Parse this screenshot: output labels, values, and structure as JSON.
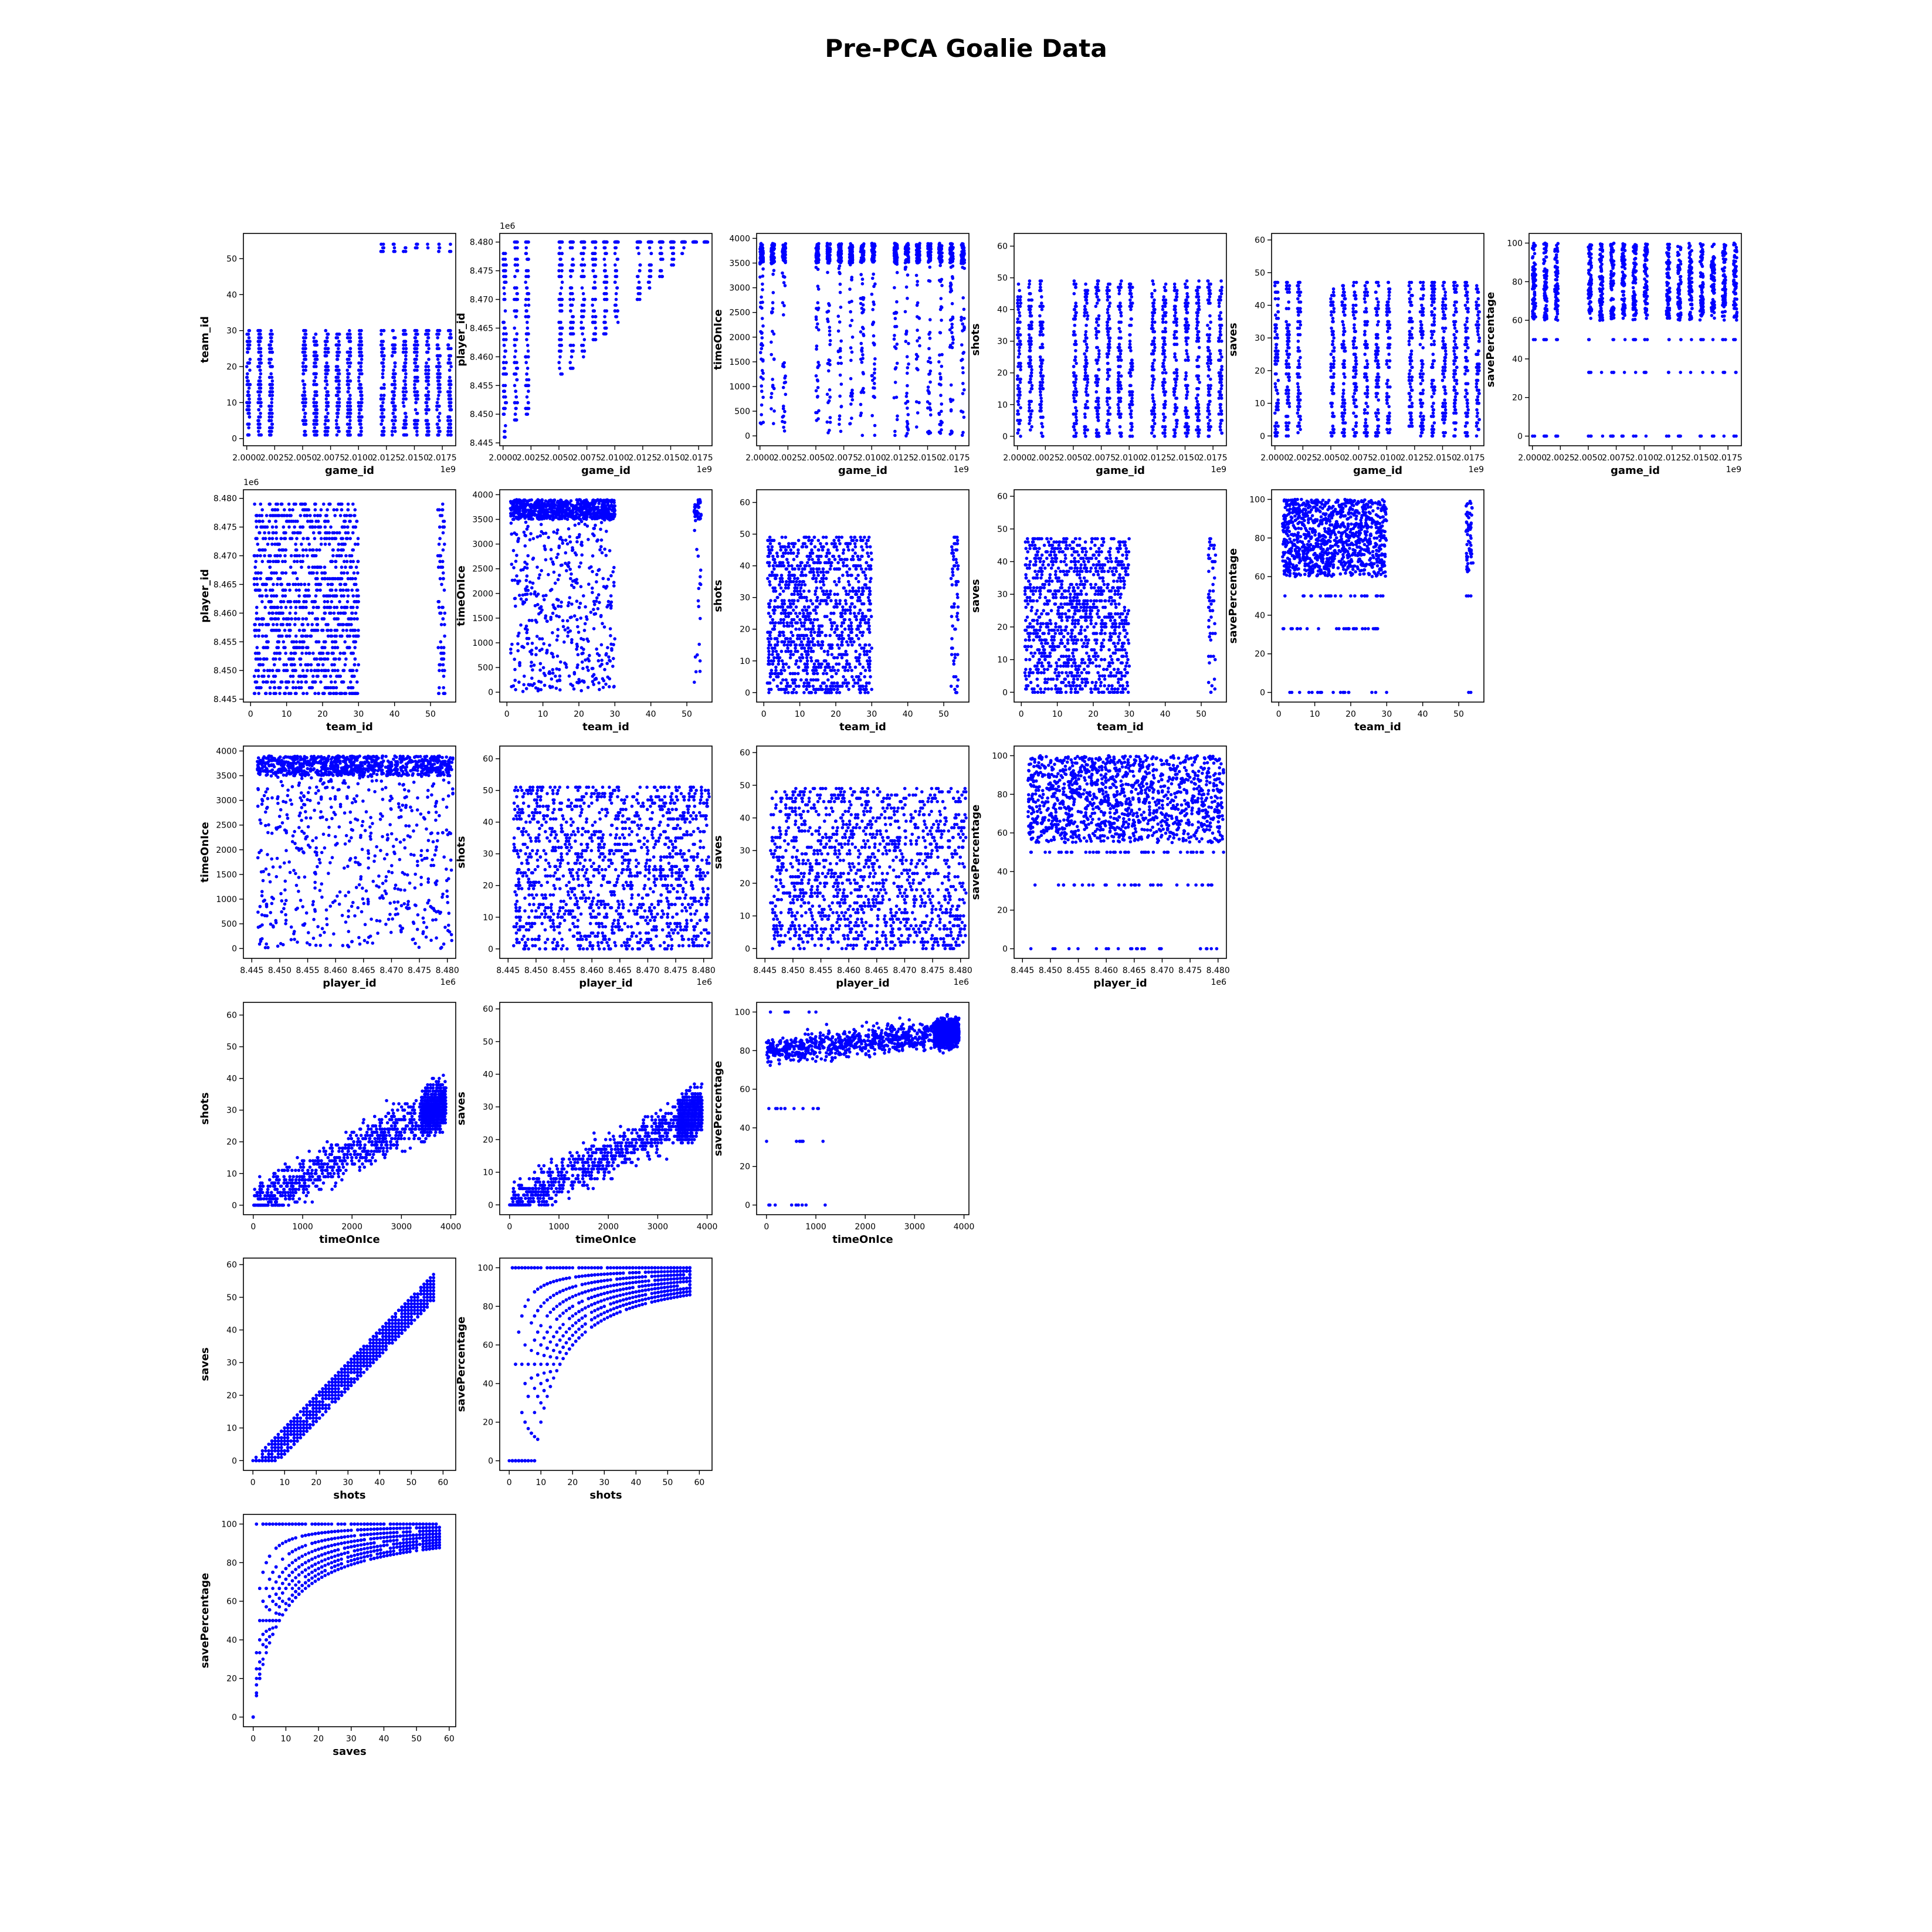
{
  "figure": {
    "title": "Pre-PCA Goalie Data"
  },
  "colors": {
    "marker": "#0000ff",
    "axes": "#000000",
    "background": "#ffffff"
  },
  "chart_data": [
    {
      "type": "scatter",
      "x_var": "game_id",
      "y_var": "team_id",
      "xlabel": "game_id",
      "ylabel": "team_id",
      "xlim": [
        1999700000,
        2018700000
      ],
      "ylim": [
        -2,
        57
      ],
      "xticks": [
        "2.0000",
        "2.0025",
        "2.0050",
        "2.0075",
        "2.0100",
        "2.0125",
        "2.0150",
        "2.0175"
      ],
      "xticks_values": [
        2000000000,
        2002500000,
        2005000000,
        2007500000,
        2010000000,
        2012500000,
        2015000000,
        2017500000
      ],
      "x_offset": "1e9",
      "yticks": [
        "0",
        "10",
        "20",
        "30",
        "40",
        "50"
      ],
      "yticks_values": [
        0,
        10,
        20,
        30,
        40,
        50
      ],
      "y_offset": ""
    },
    {
      "type": "scatter",
      "x_var": "game_id",
      "y_var": "player_id",
      "xlabel": "game_id",
      "ylabel": "player_id",
      "xlim": [
        1999700000,
        2018700000
      ],
      "ylim": [
        8444500,
        8481500
      ],
      "xticks": [
        "2.0000",
        "2.0025",
        "2.0050",
        "2.0075",
        "2.0100",
        "2.0125",
        "2.0150",
        "2.0175"
      ],
      "xticks_values": [
        2000000000,
        2002500000,
        2005000000,
        2007500000,
        2010000000,
        2012500000,
        2015000000,
        2017500000
      ],
      "x_offset": "1e9",
      "yticks": [
        "8.445",
        "8.450",
        "8.455",
        "8.460",
        "8.465",
        "8.470",
        "8.475",
        "8.480"
      ],
      "yticks_values": [
        8445000,
        8450000,
        8455000,
        8460000,
        8465000,
        8470000,
        8475000,
        8480000
      ],
      "y_offset": "1e6"
    },
    {
      "type": "scatter",
      "x_var": "game_id",
      "y_var": "timeOnIce",
      "xlabel": "game_id",
      "ylabel": "timeOnIce",
      "xlim": [
        1999700000,
        2018700000
      ],
      "ylim": [
        -200,
        4100
      ],
      "xticks": [
        "2.0000",
        "2.0025",
        "2.0050",
        "2.0075",
        "2.0100",
        "2.0125",
        "2.0150",
        "2.0175"
      ],
      "xticks_values": [
        2000000000,
        2002500000,
        2005000000,
        2007500000,
        2010000000,
        2012500000,
        2015000000,
        2017500000
      ],
      "x_offset": "1e9",
      "yticks": [
        "0",
        "500",
        "1000",
        "1500",
        "2000",
        "2500",
        "3000",
        "3500",
        "4000"
      ],
      "yticks_values": [
        0,
        500,
        1000,
        1500,
        2000,
        2500,
        3000,
        3500,
        4000
      ],
      "y_offset": ""
    },
    {
      "type": "scatter",
      "x_var": "game_id",
      "y_var": "shots",
      "xlabel": "game_id",
      "ylabel": "shots",
      "xlim": [
        1999700000,
        2018700000
      ],
      "ylim": [
        -3,
        64
      ],
      "xticks": [
        "2.0000",
        "2.0025",
        "2.0050",
        "2.0075",
        "2.0100",
        "2.0125",
        "2.0150",
        "2.0175"
      ],
      "xticks_values": [
        2000000000,
        2002500000,
        2005000000,
        2007500000,
        2010000000,
        2012500000,
        2015000000,
        2017500000
      ],
      "x_offset": "1e9",
      "yticks": [
        "0",
        "10",
        "20",
        "30",
        "40",
        "50",
        "60"
      ],
      "yticks_values": [
        0,
        10,
        20,
        30,
        40,
        50,
        60
      ],
      "y_offset": ""
    },
    {
      "type": "scatter",
      "x_var": "game_id",
      "y_var": "saves",
      "xlabel": "game_id",
      "ylabel": "saves",
      "xlim": [
        1999700000,
        2018700000
      ],
      "ylim": [
        -3,
        62
      ],
      "xticks": [
        "2.0000",
        "2.0025",
        "2.0050",
        "2.0075",
        "2.0100",
        "2.0125",
        "2.0150",
        "2.0175"
      ],
      "xticks_values": [
        2000000000,
        2002500000,
        2005000000,
        2007500000,
        2010000000,
        2012500000,
        2015000000,
        2017500000
      ],
      "x_offset": "1e9",
      "yticks": [
        "0",
        "10",
        "20",
        "30",
        "40",
        "50",
        "60"
      ],
      "yticks_values": [
        0,
        10,
        20,
        30,
        40,
        50,
        60
      ],
      "y_offset": ""
    },
    {
      "type": "scatter",
      "x_var": "game_id",
      "y_var": "savePercentage",
      "xlabel": "game_id",
      "ylabel": "savePercentage",
      "xlim": [
        1999700000,
        2018700000
      ],
      "ylim": [
        -5,
        105
      ],
      "xticks": [
        "2.0000",
        "2.0025",
        "2.0050",
        "2.0075",
        "2.0100",
        "2.0125",
        "2.0150",
        "2.0175"
      ],
      "xticks_values": [
        2000000000,
        2002500000,
        2005000000,
        2007500000,
        2010000000,
        2012500000,
        2015000000,
        2017500000
      ],
      "x_offset": "1e9",
      "yticks": [
        "0",
        "20",
        "40",
        "60",
        "80",
        "100"
      ],
      "yticks_values": [
        0,
        20,
        40,
        60,
        80,
        100
      ],
      "y_offset": ""
    },
    {
      "type": "scatter",
      "x_var": "team_id",
      "y_var": "player_id",
      "xlabel": "team_id",
      "ylabel": "player_id",
      "xlim": [
        -2,
        57
      ],
      "ylim": [
        8444500,
        8481500
      ],
      "xticks": [
        "0",
        "10",
        "20",
        "30",
        "40",
        "50"
      ],
      "xticks_values": [
        0,
        10,
        20,
        30,
        40,
        50
      ],
      "x_offset": "",
      "yticks": [
        "8.445",
        "8.450",
        "8.455",
        "8.460",
        "8.465",
        "8.470",
        "8.475",
        "8.480"
      ],
      "yticks_values": [
        8445000,
        8450000,
        8455000,
        8460000,
        8465000,
        8470000,
        8475000,
        8480000
      ],
      "y_offset": "1e6"
    },
    {
      "type": "scatter",
      "x_var": "team_id",
      "y_var": "timeOnIce",
      "xlabel": "team_id",
      "ylabel": "timeOnIce",
      "xlim": [
        -2,
        57
      ],
      "ylim": [
        -200,
        4100
      ],
      "xticks": [
        "0",
        "10",
        "20",
        "30",
        "40",
        "50"
      ],
      "xticks_values": [
        0,
        10,
        20,
        30,
        40,
        50
      ],
      "x_offset": "",
      "yticks": [
        "0",
        "500",
        "1000",
        "1500",
        "2000",
        "2500",
        "3000",
        "3500",
        "4000"
      ],
      "yticks_values": [
        0,
        500,
        1000,
        1500,
        2000,
        2500,
        3000,
        3500,
        4000
      ],
      "y_offset": ""
    },
    {
      "type": "scatter",
      "x_var": "team_id",
      "y_var": "shots",
      "xlabel": "team_id",
      "ylabel": "shots",
      "xlim": [
        -2,
        57
      ],
      "ylim": [
        -3,
        64
      ],
      "xticks": [
        "0",
        "10",
        "20",
        "30",
        "40",
        "50"
      ],
      "xticks_values": [
        0,
        10,
        20,
        30,
        40,
        50
      ],
      "x_offset": "",
      "yticks": [
        "0",
        "10",
        "20",
        "30",
        "40",
        "50",
        "60"
      ],
      "yticks_values": [
        0,
        10,
        20,
        30,
        40,
        50,
        60
      ],
      "y_offset": ""
    },
    {
      "type": "scatter",
      "x_var": "team_id",
      "y_var": "saves",
      "xlabel": "team_id",
      "ylabel": "saves",
      "xlim": [
        -2,
        57
      ],
      "ylim": [
        -3,
        62
      ],
      "xticks": [
        "0",
        "10",
        "20",
        "30",
        "40",
        "50"
      ],
      "xticks_values": [
        0,
        10,
        20,
        30,
        40,
        50
      ],
      "x_offset": "",
      "yticks": [
        "0",
        "10",
        "20",
        "30",
        "40",
        "50",
        "60"
      ],
      "yticks_values": [
        0,
        10,
        20,
        30,
        40,
        50,
        60
      ],
      "y_offset": ""
    },
    {
      "type": "scatter",
      "x_var": "team_id",
      "y_var": "savePercentage",
      "xlabel": "team_id",
      "ylabel": "savePercentage",
      "xlim": [
        -2,
        57
      ],
      "ylim": [
        -5,
        105
      ],
      "xticks": [
        "0",
        "10",
        "20",
        "30",
        "40",
        "50"
      ],
      "xticks_values": [
        0,
        10,
        20,
        30,
        40,
        50
      ],
      "x_offset": "",
      "yticks": [
        "0",
        "20",
        "40",
        "60",
        "80",
        "100"
      ],
      "yticks_values": [
        0,
        20,
        40,
        60,
        80,
        100
      ],
      "y_offset": ""
    },
    {
      "type": "scatter",
      "x_var": "player_id",
      "y_var": "timeOnIce",
      "xlabel": "player_id",
      "ylabel": "timeOnIce",
      "xlim": [
        8443500,
        8481500
      ],
      "ylim": [
        -200,
        4100
      ],
      "xticks": [
        "8.445",
        "8.450",
        "8.455",
        "8.460",
        "8.465",
        "8.470",
        "8.475",
        "8.480"
      ],
      "xticks_values": [
        8445000,
        8450000,
        8455000,
        8460000,
        8465000,
        8470000,
        8475000,
        8480000
      ],
      "x_offset": "1e6",
      "yticks": [
        "0",
        "500",
        "1000",
        "1500",
        "2000",
        "2500",
        "3000",
        "3500",
        "4000"
      ],
      "yticks_values": [
        0,
        500,
        1000,
        1500,
        2000,
        2500,
        3000,
        3500,
        4000
      ],
      "y_offset": ""
    },
    {
      "type": "scatter",
      "x_var": "player_id",
      "y_var": "shots",
      "xlabel": "player_id",
      "ylabel": "shots",
      "xlim": [
        8443500,
        8481500
      ],
      "ylim": [
        -3,
        64
      ],
      "xticks": [
        "8.445",
        "8.450",
        "8.455",
        "8.460",
        "8.465",
        "8.470",
        "8.475",
        "8.480"
      ],
      "xticks_values": [
        8445000,
        8450000,
        8455000,
        8460000,
        8465000,
        8470000,
        8475000,
        8480000
      ],
      "x_offset": "1e6",
      "yticks": [
        "0",
        "10",
        "20",
        "30",
        "40",
        "50",
        "60"
      ],
      "yticks_values": [
        0,
        10,
        20,
        30,
        40,
        50,
        60
      ],
      "y_offset": ""
    },
    {
      "type": "scatter",
      "x_var": "player_id",
      "y_var": "saves",
      "xlabel": "player_id",
      "ylabel": "saves",
      "xlim": [
        8443500,
        8481500
      ],
      "ylim": [
        -3,
        62
      ],
      "xticks": [
        "8.445",
        "8.450",
        "8.455",
        "8.460",
        "8.465",
        "8.470",
        "8.475",
        "8.480"
      ],
      "xticks_values": [
        8445000,
        8450000,
        8455000,
        8460000,
        8465000,
        8470000,
        8475000,
        8480000
      ],
      "x_offset": "1e6",
      "yticks": [
        "0",
        "10",
        "20",
        "30",
        "40",
        "50",
        "60"
      ],
      "yticks_values": [
        0,
        10,
        20,
        30,
        40,
        50,
        60
      ],
      "y_offset": ""
    },
    {
      "type": "scatter",
      "x_var": "player_id",
      "y_var": "savePercentage",
      "xlabel": "player_id",
      "ylabel": "savePercentage",
      "xlim": [
        8443500,
        8481500
      ],
      "ylim": [
        -5,
        105
      ],
      "xticks": [
        "8.445",
        "8.450",
        "8.455",
        "8.460",
        "8.465",
        "8.470",
        "8.475",
        "8.480"
      ],
      "xticks_values": [
        8445000,
        8450000,
        8455000,
        8460000,
        8465000,
        8470000,
        8475000,
        8480000
      ],
      "x_offset": "1e6",
      "yticks": [
        "0",
        "20",
        "40",
        "60",
        "80",
        "100"
      ],
      "yticks_values": [
        0,
        20,
        40,
        60,
        80,
        100
      ],
      "y_offset": ""
    },
    {
      "type": "scatter",
      "x_var": "timeOnIce",
      "y_var": "shots",
      "xlabel": "timeOnIce",
      "ylabel": "shots",
      "xlim": [
        -200,
        4100
      ],
      "ylim": [
        -3,
        64
      ],
      "xticks": [
        "0",
        "1000",
        "2000",
        "3000",
        "4000"
      ],
      "xticks_values": [
        0,
        1000,
        2000,
        3000,
        4000
      ],
      "x_offset": "",
      "yticks": [
        "0",
        "10",
        "20",
        "30",
        "40",
        "50",
        "60"
      ],
      "yticks_values": [
        0,
        10,
        20,
        30,
        40,
        50,
        60
      ],
      "y_offset": ""
    },
    {
      "type": "scatter",
      "x_var": "timeOnIce",
      "y_var": "saves",
      "xlabel": "timeOnIce",
      "ylabel": "saves",
      "xlim": [
        -200,
        4100
      ],
      "ylim": [
        -3,
        62
      ],
      "xticks": [
        "0",
        "1000",
        "2000",
        "3000",
        "4000"
      ],
      "xticks_values": [
        0,
        1000,
        2000,
        3000,
        4000
      ],
      "x_offset": "",
      "yticks": [
        "0",
        "10",
        "20",
        "30",
        "40",
        "50",
        "60"
      ],
      "yticks_values": [
        0,
        10,
        20,
        30,
        40,
        50,
        60
      ],
      "y_offset": ""
    },
    {
      "type": "scatter",
      "x_var": "timeOnIce",
      "y_var": "savePercentage",
      "xlabel": "timeOnIce",
      "ylabel": "savePercentage",
      "xlim": [
        -200,
        4100
      ],
      "ylim": [
        -5,
        105
      ],
      "xticks": [
        "0",
        "1000",
        "2000",
        "3000",
        "4000"
      ],
      "xticks_values": [
        0,
        1000,
        2000,
        3000,
        4000
      ],
      "x_offset": "",
      "yticks": [
        "0",
        "20",
        "40",
        "60",
        "80",
        "100"
      ],
      "yticks_values": [
        0,
        20,
        40,
        60,
        80,
        100
      ],
      "y_offset": ""
    },
    {
      "type": "scatter",
      "x_var": "shots",
      "y_var": "saves",
      "xlabel": "shots",
      "ylabel": "saves",
      "xlim": [
        -3,
        64
      ],
      "ylim": [
        -3,
        62
      ],
      "xticks": [
        "0",
        "10",
        "20",
        "30",
        "40",
        "50",
        "60"
      ],
      "xticks_values": [
        0,
        10,
        20,
        30,
        40,
        50,
        60
      ],
      "x_offset": "",
      "yticks": [
        "0",
        "10",
        "20",
        "30",
        "40",
        "50",
        "60"
      ],
      "yticks_values": [
        0,
        10,
        20,
        30,
        40,
        50,
        60
      ],
      "y_offset": ""
    },
    {
      "type": "scatter",
      "x_var": "shots",
      "y_var": "savePercentage",
      "xlabel": "shots",
      "ylabel": "savePercentage",
      "xlim": [
        -3,
        64
      ],
      "ylim": [
        -5,
        105
      ],
      "xticks": [
        "0",
        "10",
        "20",
        "30",
        "40",
        "50",
        "60"
      ],
      "xticks_values": [
        0,
        10,
        20,
        30,
        40,
        50,
        60
      ],
      "x_offset": "",
      "yticks": [
        "0",
        "20",
        "40",
        "60",
        "80",
        "100"
      ],
      "yticks_values": [
        0,
        20,
        40,
        60,
        80,
        100
      ],
      "y_offset": ""
    },
    {
      "type": "scatter",
      "x_var": "saves",
      "y_var": "savePercentage",
      "xlabel": "saves",
      "ylabel": "savePercentage",
      "xlim": [
        -3,
        62
      ],
      "ylim": [
        -5,
        105
      ],
      "xticks": [
        "0",
        "10",
        "20",
        "30",
        "40",
        "50",
        "60"
      ],
      "xticks_values": [
        0,
        10,
        20,
        30,
        40,
        50,
        60
      ],
      "x_offset": "",
      "yticks": [
        "0",
        "20",
        "40",
        "60",
        "80",
        "100"
      ],
      "yticks_values": [
        0,
        20,
        40,
        60,
        80,
        100
      ],
      "y_offset": ""
    }
  ]
}
